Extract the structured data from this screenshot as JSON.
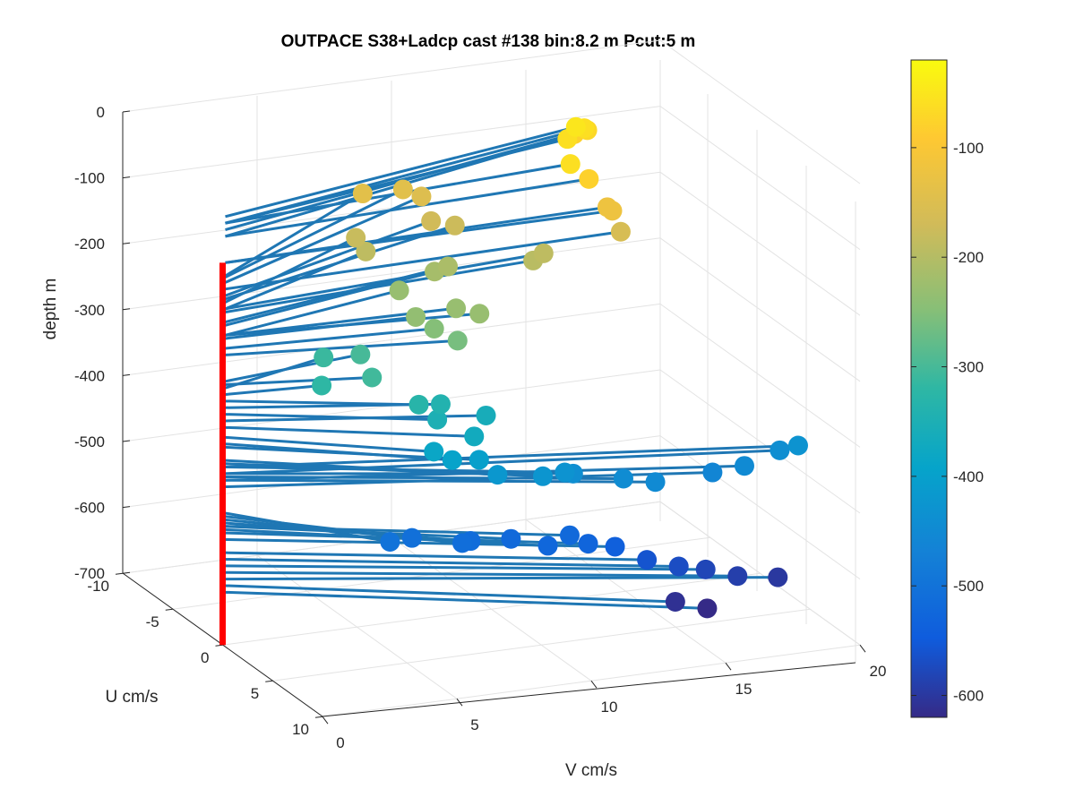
{
  "chart_data": {
    "type": "scatter",
    "title": "OUTPACE S38+Ladcp cast #138 bin:8.2 m  Pcut:5 m",
    "xlabel": "V cm/s",
    "ylabel": "U cm/s",
    "zlabel": "depth m",
    "x_ticks": [
      "0",
      "5",
      "10",
      "15",
      "20"
    ],
    "y_ticks": [
      "-10",
      "-5",
      "0",
      "5",
      "10"
    ],
    "z_ticks": [
      "0",
      "-100",
      "-200",
      "-300",
      "-400",
      "-500",
      "-600",
      "-700"
    ],
    "colorbar_ticks": [
      "-100",
      "-200",
      "-300",
      "-400",
      "-500",
      "-600"
    ],
    "colorbar_range": [
      -620,
      -20
    ],
    "colormap": "parula",
    "grid": true,
    "view": "3-D, azimuth rotated",
    "series": [
      {
        "type": "vertical-line",
        "color": "#ff0000",
        "description": "profile at U=0,V=0",
        "depth_range": [
          -120,
          -700
        ]
      },
      {
        "type": "scatter-with-stems",
        "marker_color_by": "depth",
        "stem_color": "#1f77b4",
        "points": [
          {
            "v": 8.0,
            "u": -7.5,
            "depth": -140
          },
          {
            "v": 9.5,
            "u": -7.5,
            "depth": -142
          },
          {
            "v": 10.0,
            "u": -7.0,
            "depth": -150
          },
          {
            "v": 9.8,
            "u": -5.5,
            "depth": -170
          },
          {
            "v": 10.5,
            "u": -5.0,
            "depth": -175
          },
          {
            "v": 15.5,
            "u": -6.5,
            "depth": -80
          },
          {
            "v": 15.8,
            "u": -6.0,
            "depth": -70
          },
          {
            "v": 15.5,
            "u": -5.5,
            "depth": -60
          },
          {
            "v": 15.0,
            "u": -5.0,
            "depth": -50
          },
          {
            "v": 14.5,
            "u": -4.5,
            "depth": -60
          },
          {
            "v": 7.0,
            "u": -4.5,
            "depth": -190
          },
          {
            "v": 7.0,
            "u": -5.5,
            "depth": -180
          },
          {
            "v": 9.5,
            "u": -3.0,
            "depth": -210
          },
          {
            "v": 9.0,
            "u": -3.0,
            "depth": -215
          },
          {
            "v": 7.5,
            "u": -2.5,
            "depth": -230
          },
          {
            "v": 13.5,
            "u": -1.5,
            "depth": -60
          },
          {
            "v": 14.0,
            "u": -1.0,
            "depth": -80
          },
          {
            "v": 15.0,
            "u": -0.5,
            "depth": -160
          },
          {
            "v": 12.5,
            "u": -1.5,
            "depth": -190
          },
          {
            "v": 12.0,
            "u": -1.2,
            "depth": -195
          },
          {
            "v": 14.5,
            "u": -0.5,
            "depth": -120
          },
          {
            "v": 14.5,
            "u": 0.0,
            "depth": -120
          },
          {
            "v": 8.5,
            "u": 0.5,
            "depth": -230
          },
          {
            "v": 9.0,
            "u": 1.5,
            "depth": -230
          },
          {
            "v": 7.0,
            "u": 0.5,
            "depth": -235
          },
          {
            "v": 7.5,
            "u": 1.0,
            "depth": -250
          },
          {
            "v": 8.0,
            "u": 2.0,
            "depth": -260
          },
          {
            "v": 5.5,
            "u": -1.0,
            "depth": -300
          },
          {
            "v": 5.0,
            "u": 1.5,
            "depth": -305
          },
          {
            "v": 4.5,
            "u": -2.0,
            "depth": -310
          },
          {
            "v": 3.5,
            "u": 0.5,
            "depth": -320
          },
          {
            "v": 6.0,
            "u": 3.5,
            "depth": -330
          },
          {
            "v": 7.0,
            "u": 3.0,
            "depth": -340
          },
          {
            "v": 6.5,
            "u": 4.0,
            "depth": -350
          },
          {
            "v": 8.5,
            "u": 3.5,
            "depth": -360
          },
          {
            "v": 7.5,
            "u": 5.0,
            "depth": -370
          },
          {
            "v": 6.0,
            "u": 5.0,
            "depth": -385
          },
          {
            "v": 6.5,
            "u": 5.5,
            "depth": -395
          },
          {
            "v": 7.5,
            "u": 5.5,
            "depth": -400
          },
          {
            "v": 8.0,
            "u": 6.0,
            "depth": -420
          },
          {
            "v": 9.5,
            "u": 6.5,
            "depth": -425
          },
          {
            "v": 10.5,
            "u": 6.0,
            "depth": -430
          },
          {
            "v": 11.0,
            "u": 5.5,
            "depth": -440
          },
          {
            "v": 12.5,
            "u": 6.5,
            "depth": -445
          },
          {
            "v": 13.5,
            "u": 7.0,
            "depth": -450
          },
          {
            "v": 16.0,
            "u": 6.0,
            "depth": -460
          },
          {
            "v": 17.0,
            "u": 6.5,
            "depth": -450
          },
          {
            "v": 18.5,
            "u": 6.0,
            "depth": -440
          },
          {
            "v": 19.0,
            "u": 6.5,
            "depth": -430
          },
          {
            "v": 4.0,
            "u": 6.0,
            "depth": -500
          },
          {
            "v": 5.0,
            "u": 5.5,
            "depth": -505
          },
          {
            "v": 6.5,
            "u": 6.5,
            "depth": -510
          },
          {
            "v": 7.0,
            "u": 6.0,
            "depth": -515
          },
          {
            "v": 8.5,
            "u": 6.0,
            "depth": -520
          },
          {
            "v": 9.5,
            "u": 7.0,
            "depth": -525
          },
          {
            "v": 10.5,
            "u": 6.5,
            "depth": -520
          },
          {
            "v": 11.0,
            "u": 7.0,
            "depth": -530
          },
          {
            "v": 12.0,
            "u": 7.0,
            "depth": -540
          },
          {
            "v": 13.0,
            "u": 7.5,
            "depth": -560
          },
          {
            "v": 14.0,
            "u": 8.0,
            "depth": -570
          },
          {
            "v": 15.0,
            "u": 8.0,
            "depth": -580
          },
          {
            "v": 16.0,
            "u": 8.5,
            "depth": -590
          },
          {
            "v": 13.5,
            "u": 9.0,
            "depth": -610
          },
          {
            "v": 17.5,
            "u": 8.5,
            "depth": -600
          },
          {
            "v": 14.5,
            "u": 9.5,
            "depth": -620
          }
        ]
      }
    ]
  }
}
